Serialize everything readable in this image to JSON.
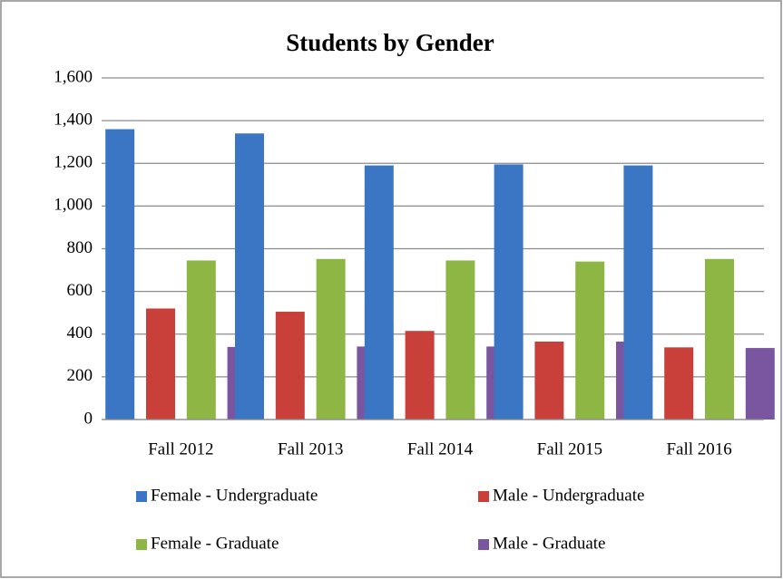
{
  "chart_data": {
    "type": "bar",
    "title": "Students by Gender",
    "categories": [
      "Fall 2012",
      "Fall 2013",
      "Fall 2014",
      "Fall 2015",
      "Fall 2016"
    ],
    "series": [
      {
        "name": "Female - Undergraduate",
        "color": "#3a76c4",
        "values": [
          1360,
          1340,
          1190,
          1195,
          1190
        ]
      },
      {
        "name": "Male - Undergraduate",
        "color": "#c9403a",
        "values": [
          520,
          505,
          415,
          365,
          338
        ]
      },
      {
        "name": "Female - Graduate",
        "color": "#8db645",
        "values": [
          745,
          752,
          745,
          740,
          752
        ]
      },
      {
        "name": "Male - Graduate",
        "color": "#7a56a0",
        "values": [
          340,
          342,
          342,
          365,
          335
        ]
      }
    ],
    "ylim": [
      0,
      1600
    ],
    "yticks": [
      0,
      200,
      400,
      600,
      800,
      {
        "value": 1000,
        "label": "1,000"
      },
      {
        "value": 1200,
        "label": "1,200"
      },
      {
        "value": 1400,
        "label": "1,400"
      },
      {
        "value": 1600,
        "label": "1,600"
      }
    ],
    "grid": true,
    "legend": "bottom"
  }
}
